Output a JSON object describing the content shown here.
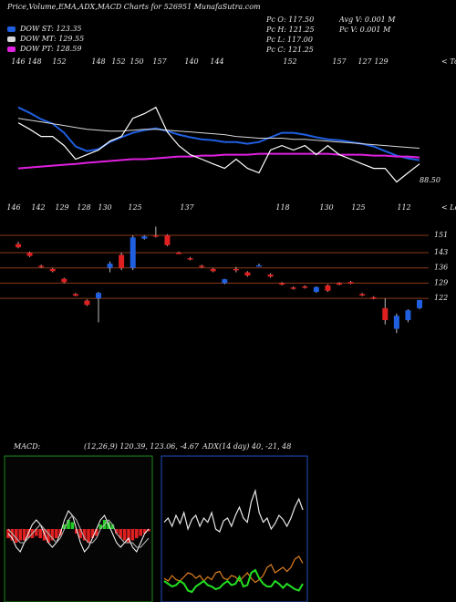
{
  "header": {
    "title": "Price,Volume,EMA,ADX,MACD Charts for 526951 MunafaSutra.com",
    "info": [
      "Pc  O: 117.50",
      "Pc  H: 121.25",
      "Pc  L: 117.00",
      "Pc  C: 121.25",
      "Avg V: 0.001 M",
      "Pc  V: 0.001 M"
    ]
  },
  "chart_data": [
    {
      "type": "line",
      "categories": [
        null,
        null,
        null,
        null,
        null,
        null,
        null,
        null,
        null,
        null,
        null,
        null,
        null,
        null,
        null,
        null,
        null,
        null,
        null,
        null,
        null,
        null,
        null,
        null,
        null,
        null,
        null,
        null,
        null,
        null,
        null,
        null,
        null,
        null,
        null,
        null
      ],
      "ylim": [
        100,
        160
      ],
      "values": [
        142.4,
        138.8,
        134.8,
        134.8,
        129.7,
        122.1,
        124.6,
        127.2,
        132.2,
        134.8,
        144.9,
        147.5,
        151.0,
        137.3,
        129.7,
        124.6,
        122.1,
        119.5,
        117.0,
        122.1,
        117.0,
        114.5,
        127.2,
        129.7,
        127.2,
        129.7,
        124.6,
        129.7,
        124.6,
        122.1,
        119.5,
        117.0,
        117.0,
        109.4,
        114.5,
        119.5
      ],
      "color": "#ffffff",
      "series": [
        {
          "name": "DOW ST: 123.35",
          "color": "#1f5fe0",
          "values": [
            151.0,
            147.9,
            144.4,
            141.9,
            136.8,
            129.2,
            126.6,
            127.7,
            131.7,
            134.3,
            136.8,
            138.3,
            139.3,
            137.8,
            135.8,
            134.3,
            133.2,
            132.7,
            131.7,
            131.7,
            130.7,
            131.7,
            134.3,
            136.8,
            136.8,
            135.8,
            134.3,
            133.2,
            132.7,
            131.7,
            130.7,
            129.2,
            126.6,
            124.1,
            122.6,
            121.5
          ]
        },
        {
          "name": "DOW MT: 129.55",
          "color": "#d8d8d8",
          "values": [
            144.9,
            143.9,
            142.9,
            141.9,
            140.9,
            139.8,
            138.8,
            138.3,
            137.8,
            137.8,
            138.3,
            138.8,
            138.8,
            138.3,
            137.8,
            137.3,
            136.8,
            136.3,
            135.8,
            134.8,
            134.3,
            133.8,
            133.8,
            133.8,
            133.2,
            133.2,
            132.7,
            132.2,
            131.7,
            131.2,
            130.7,
            130.2,
            129.7,
            129.2,
            128.7,
            128.2
          ]
        },
        {
          "name": "DOW PT: 128.59",
          "color": "#e020e0",
          "values": [
            117.0,
            117.5,
            118.0,
            118.5,
            119.0,
            119.5,
            120.1,
            120.6,
            121.1,
            121.6,
            122.1,
            122.1,
            122.6,
            123.1,
            123.6,
            123.6,
            124.1,
            124.1,
            124.6,
            124.6,
            124.6,
            125.1,
            125.1,
            125.1,
            125.1,
            125.1,
            125.1,
            125.1,
            124.6,
            124.6,
            124.6,
            124.1,
            124.1,
            123.6,
            123.6,
            123.1
          ]
        }
      ],
      "top_labels": [
        "146",
        "148",
        "152",
        "148",
        "152",
        "150",
        "157",
        "140",
        "144",
        "152",
        "157",
        "127",
        "129"
      ],
      "bottom_labels": [
        "146",
        "142",
        "129",
        "128",
        "130",
        "125",
        "137",
        "118",
        "130",
        "125",
        "112"
      ],
      "tops_label": "< Tops",
      "lows_label": "< Lows",
      "last_label": "88.50"
    },
    {
      "type": "candlestick",
      "ylim": [
        104,
        157
      ],
      "yticks": [
        151,
        143,
        136,
        129,
        122
      ],
      "grid": true,
      "grid_color": "#8b3a1a",
      "up_color": "#2060e0",
      "down_color": "#e02020",
      "open": [
        147,
        143,
        137,
        135.5,
        131,
        124,
        121,
        122,
        136,
        142,
        136,
        149.5,
        151,
        151,
        143,
        140.5,
        137,
        135.5,
        129,
        135.5,
        134,
        137,
        133,
        129,
        127,
        127.5,
        125,
        128,
        129,
        129.5,
        124,
        122.5,
        117.5,
        108,
        112,
        117.5
      ],
      "high": [
        148,
        143.5,
        137.5,
        136,
        131.5,
        124.5,
        121.5,
        125,
        139,
        143,
        151,
        151,
        155,
        151.5,
        143.5,
        141,
        137.5,
        136,
        131,
        136.5,
        134.5,
        138,
        133.5,
        129.5,
        127.5,
        128,
        127.5,
        128.5,
        129.5,
        130,
        124.5,
        123,
        122,
        115,
        117,
        121.25
      ],
      "low": [
        145,
        141,
        136,
        134,
        129,
        123,
        118.5,
        111,
        134,
        135,
        135,
        149,
        150,
        146,
        142.5,
        139.5,
        136,
        134,
        128.5,
        134,
        132,
        136.5,
        131.5,
        128,
        126,
        126.5,
        124.5,
        125,
        128,
        128.5,
        123,
        121.5,
        110,
        106,
        111,
        117
      ],
      "close": [
        145.5,
        141.5,
        136.5,
        134.5,
        129.5,
        123.2,
        119,
        124.5,
        138,
        136,
        150,
        150.5,
        150.8,
        146.5,
        142.8,
        140,
        136.5,
        134.5,
        130.8,
        135,
        132.5,
        137.2,
        132,
        128.3,
        126.5,
        127,
        127.2,
        125.5,
        128.3,
        128.8,
        123.3,
        121.8,
        112,
        114,
        116.5,
        121.25
      ]
    },
    {
      "type": "macd",
      "title": "MACD:",
      "subtitle": "(12,26,9) 120.39, 123.06, -4.67",
      "ylim": [
        -15,
        15
      ],
      "up_color": "#22cc22",
      "down_color": "#e02020",
      "series": [
        {
          "color": "#ffffff",
          "values": [
            -1,
            -2,
            -4,
            -5,
            -3,
            -1,
            1,
            2,
            1,
            -1,
            -3,
            -4,
            -3,
            -1,
            2,
            4,
            3,
            0,
            -3,
            -5,
            -4,
            -2,
            0,
            2,
            3,
            1,
            -1,
            -3,
            -4,
            -3,
            -2,
            -4,
            -5,
            -3,
            -1,
            0
          ]
        },
        {
          "color": "#bbbbbb",
          "values": [
            0,
            -1,
            -2,
            -3,
            -3,
            -2,
            -1,
            0,
            1,
            0,
            -1,
            -2,
            -3,
            -2,
            0,
            2,
            3,
            2,
            0,
            -2,
            -3,
            -3,
            -2,
            0,
            1,
            2,
            1,
            -1,
            -2,
            -3,
            -3,
            -3,
            -4,
            -4,
            -3,
            -2
          ]
        }
      ],
      "histogram": [
        -2,
        -2.5,
        -3,
        -2.5,
        -2.5,
        -2,
        -2,
        -1.5,
        -2,
        -2.5,
        -3,
        -2.5,
        -2,
        -1.5,
        1,
        2,
        1.5,
        -1,
        -2,
        -2.5,
        -3,
        -2,
        -1.5,
        1,
        2,
        1.5,
        1,
        -1,
        -2,
        -2.5,
        -3,
        -2.5,
        -2,
        -1.5,
        -1,
        -0.5
      ]
    },
    {
      "type": "adx",
      "title": "ADX",
      "subtitle": "(14 day) 40, -21, 48",
      "ylim": [
        0,
        100
      ],
      "series": [
        {
          "color": "#e8e8e8",
          "values": [
            55,
            58,
            52,
            60,
            54,
            62,
            50,
            57,
            60,
            52,
            58,
            55,
            62,
            50,
            48,
            56,
            58,
            52,
            60,
            66,
            58,
            55,
            70,
            78,
            62,
            55,
            58,
            50,
            54,
            60,
            57,
            52,
            58,
            66,
            72,
            64
          ]
        },
        {
          "color": "#e08020",
          "values": [
            14,
            12,
            16,
            13,
            12,
            15,
            18,
            17,
            14,
            16,
            12,
            15,
            13,
            18,
            19,
            14,
            13,
            16,
            15,
            12,
            15,
            18,
            14,
            11,
            13,
            16,
            22,
            24,
            18,
            20,
            22,
            19,
            22,
            28,
            30,
            25
          ]
        },
        {
          "color": "#22dd22",
          "values": [
            12,
            10,
            8,
            9,
            12,
            10,
            5,
            4,
            8,
            10,
            12,
            9,
            8,
            6,
            7,
            10,
            12,
            9,
            10,
            15,
            8,
            9,
            18,
            20,
            14,
            10,
            8,
            8,
            12,
            10,
            7,
            10,
            8,
            6,
            5,
            10
          ]
        }
      ]
    }
  ]
}
